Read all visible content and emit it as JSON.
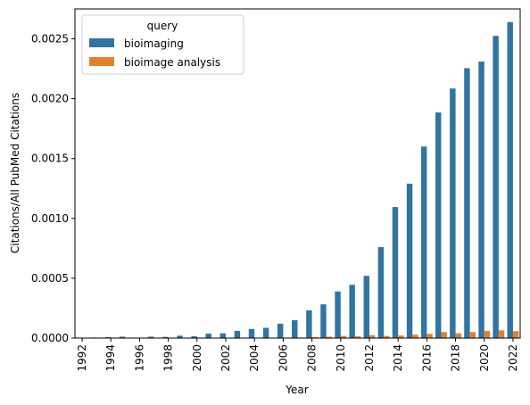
{
  "chart_data": {
    "type": "bar",
    "title": "",
    "xlabel": "Year",
    "ylabel": "Citations/All PubMed Citations",
    "ylim": [
      0,
      0.00275
    ],
    "yticks": [
      "0.0000",
      "0.0005",
      "0.0010",
      "0.0015",
      "0.0020",
      "0.0025"
    ],
    "ytick_values": [
      0,
      0.0005,
      0.001,
      0.0015,
      0.002,
      0.0025
    ],
    "categories": [
      "1992",
      "1993",
      "1994",
      "1995",
      "1996",
      "1997",
      "1998",
      "1999",
      "2000",
      "2001",
      "2002",
      "2003",
      "2004",
      "2005",
      "2006",
      "2007",
      "2008",
      "2009",
      "2010",
      "2011",
      "2012",
      "2013",
      "2014",
      "2015",
      "2016",
      "2017",
      "2018",
      "2019",
      "2020",
      "2021",
      "2022"
    ],
    "shown_tick_labels": [
      "1992",
      "1994",
      "1996",
      "1998",
      "2000",
      "2002",
      "2004",
      "2006",
      "2008",
      "2010",
      "2012",
      "2014",
      "2016",
      "2018",
      "2020",
      "2022"
    ],
    "legend": {
      "title": "query",
      "placement": "top-left"
    },
    "series": [
      {
        "name": "bioimaging",
        "color": "#3274a1",
        "values": [
          4e-06,
          5e-06,
          8e-06,
          1.2e-05,
          4e-06,
          1.2e-05,
          1e-05,
          2e-05,
          1.6e-05,
          3.8e-05,
          4e-05,
          6e-05,
          7.6e-05,
          8.6e-05,
          0.00012,
          0.00015,
          0.000232,
          0.000282,
          0.00039,
          0.000445,
          0.00052,
          0.00076,
          0.001095,
          0.00129,
          0.0016,
          0.001885,
          0.002085,
          0.002255,
          0.00231,
          0.002525,
          0.00264
        ]
      },
      {
        "name": "bioimage analysis",
        "color": "#e1812c",
        "values": [
          0.0,
          0.0,
          3e-06,
          0.0,
          1e-06,
          0.0,
          1e-06,
          1e-06,
          3e-06,
          3e-06,
          2e-06,
          2e-06,
          3e-06,
          3e-06,
          4e-06,
          5e-06,
          8e-06,
          1.2e-05,
          1.8e-05,
          1.5e-05,
          2.5e-05,
          1.8e-05,
          2.2e-05,
          2.8e-05,
          3.5e-05,
          5e-05,
          4e-05,
          5e-05,
          6e-05,
          6.5e-05,
          5.8e-05
        ]
      }
    ]
  }
}
